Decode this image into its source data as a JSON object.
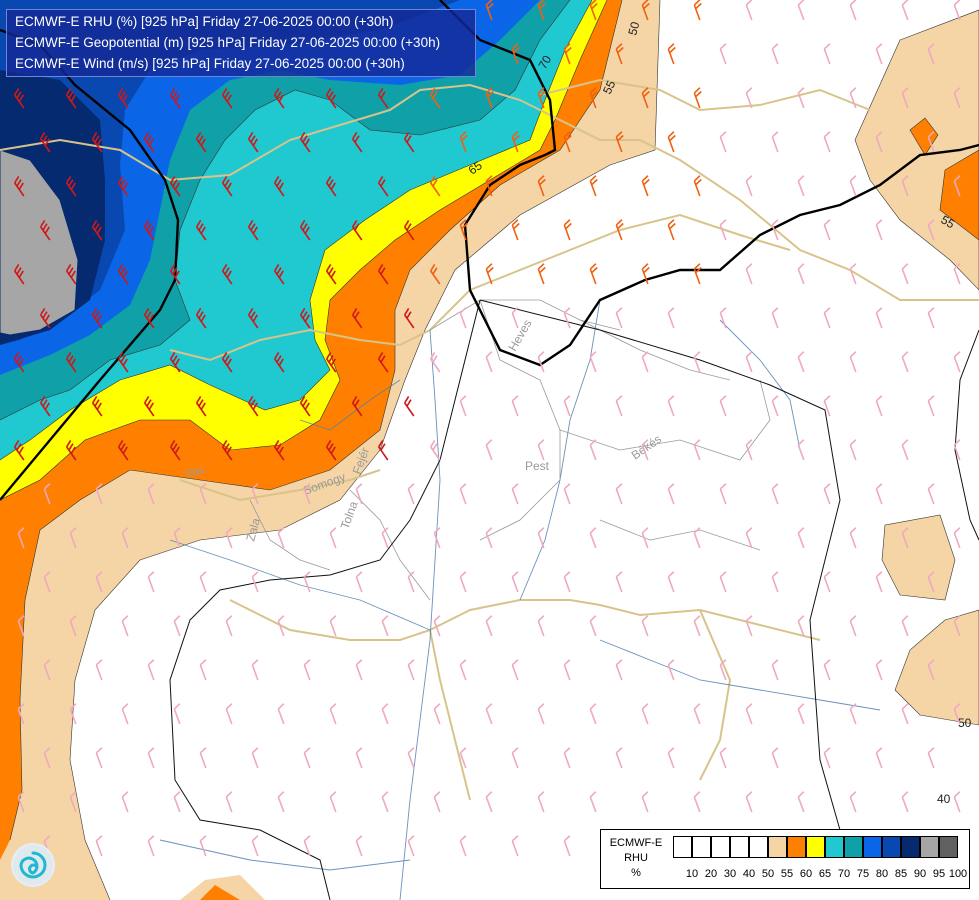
{
  "title": {
    "line1": "ECMWF-E RHU (%) [925 hPa] Friday 27-06-2025 00:00 (+30h)",
    "line2": "ECMWF-E Geopotential (m) [925 hPa] Friday 27-06-2025 00:00 (+30h)",
    "line3": "ECMWF-E Wind (m/s) [925 hPa] Friday 27-06-2025 00:00 (+30h)"
  },
  "legend": {
    "line1": "ECMWF-E",
    "line2": "RHU",
    "line3": "%",
    "ticks": [
      "10",
      "20",
      "30",
      "40",
      "50",
      "55",
      "60",
      "65",
      "70",
      "75",
      "80",
      "85",
      "90",
      "95",
      "100"
    ],
    "colors": [
      "#ffffff",
      "#ffffff",
      "#ffffff",
      "#ffffff",
      "#ffffff",
      "#f5d5a5",
      "#ff8000",
      "#ffff00",
      "#20c8d0",
      "#10a0a8",
      "#0a66e6",
      "#0848b0",
      "#062a70",
      "#a6a6a6",
      "#606060"
    ]
  },
  "colors": {
    "rh_55": "#f5d5a5",
    "rh_60": "#ff8000",
    "rh_65": "#ffff00",
    "rh_70": "#20c8d0",
    "rh_75": "#10a0a8",
    "rh_80": "#0a66e6",
    "rh_85": "#0848b0",
    "rh_90": "#062a70",
    "rh_95": "#a6a6a6",
    "border": "#d8c48a",
    "river": "#4d7fb0",
    "wind_strong": "#d01818",
    "wind_medium": "#f06010",
    "wind_light": "#f0a8c0"
  },
  "contour_labels": [
    "50",
    "70",
    "55",
    "65",
    "55",
    "50",
    "40"
  ],
  "region_labels": [
    "Heves",
    "Pest",
    "Békés",
    "Vas",
    "Somogy",
    "Fejér",
    "Zala",
    "Tolna"
  ],
  "logo": {
    "icon": "ecmwf-swirl-icon"
  }
}
